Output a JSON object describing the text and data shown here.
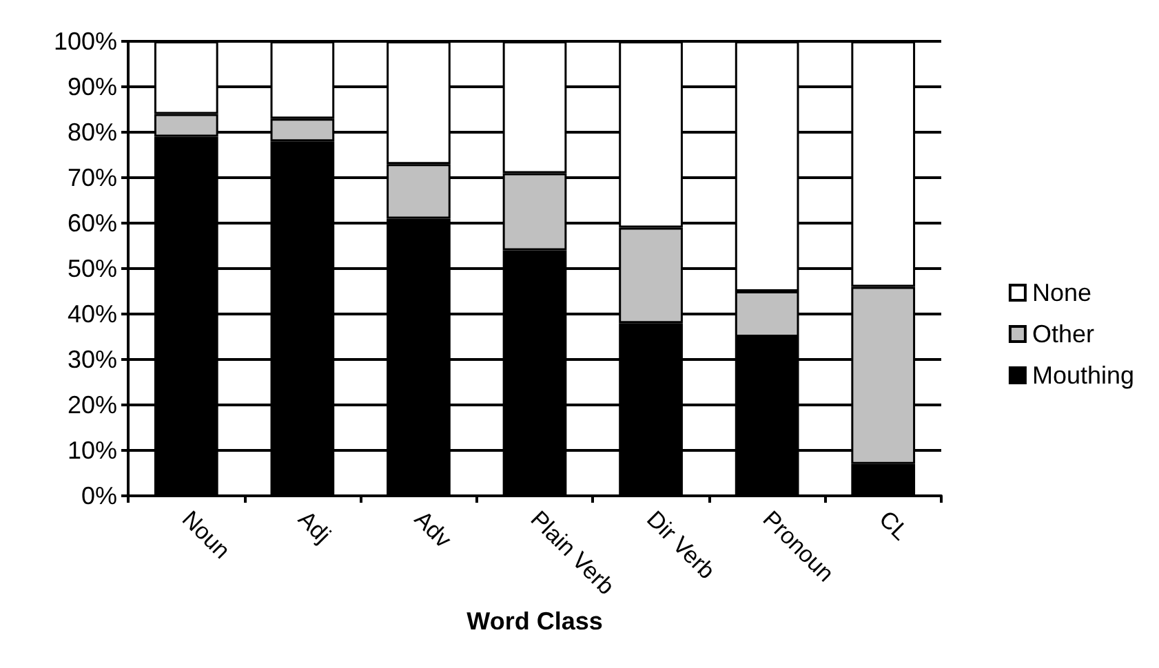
{
  "chart_data": {
    "type": "bar",
    "stacked": true,
    "xlabel": "Word Class",
    "categories": [
      "Noun",
      "Adj",
      "Adv",
      "Plain Verb",
      "Dir Verb",
      "Pronoun",
      "CL"
    ],
    "series": [
      {
        "name": "Mouthing",
        "color": "#000000",
        "values": [
          79,
          78,
          61,
          54,
          38,
          35,
          7
        ]
      },
      {
        "name": "Other",
        "color": "#c0c0c0",
        "values": [
          5,
          5,
          12,
          17,
          21,
          10,
          39
        ]
      },
      {
        "name": "None",
        "color": "#ffffff",
        "values": [
          16,
          17,
          27,
          29,
          41,
          55,
          54
        ]
      }
    ],
    "ylim": [
      0,
      100
    ],
    "yticks": [
      {
        "value": 0,
        "label": "0%"
      },
      {
        "value": 10,
        "label": "10%"
      },
      {
        "value": 20,
        "label": "20%"
      },
      {
        "value": 30,
        "label": "30%"
      },
      {
        "value": 40,
        "label": "40%"
      },
      {
        "value": 50,
        "label": "50%"
      },
      {
        "value": 60,
        "label": "60%"
      },
      {
        "value": 70,
        "label": "70%"
      },
      {
        "value": 80,
        "label": "80%"
      },
      {
        "value": 90,
        "label": "90%"
      },
      {
        "value": 100,
        "label": "100%"
      }
    ],
    "grid": "y",
    "legend": "right"
  }
}
